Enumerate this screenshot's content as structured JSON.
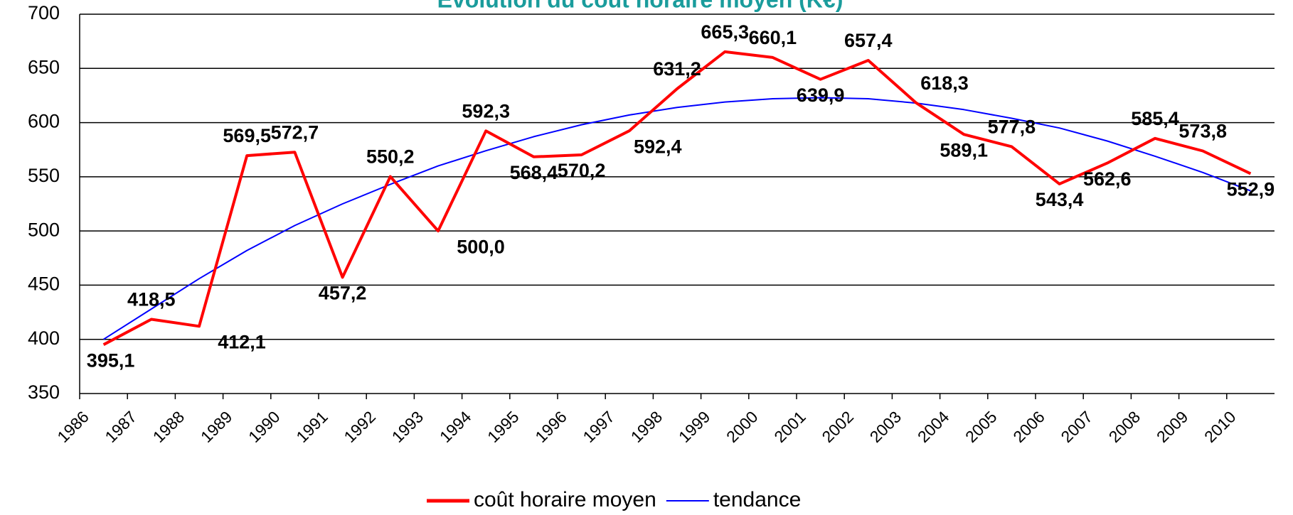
{
  "chart_data": {
    "type": "line",
    "title": "Evolution du coût horaire moyen (K€)",
    "categories": [
      "1986",
      "1987",
      "1988",
      "1989",
      "1990",
      "1991",
      "1992",
      "1993",
      "1994",
      "1995",
      "1996",
      "1997",
      "1998",
      "1999",
      "2000",
      "2001",
      "2002",
      "2003",
      "2004",
      "2005",
      "2006",
      "2007",
      "2008",
      "2009",
      "2010"
    ],
    "series": [
      {
        "name": "coût horaire moyen",
        "color": "#ff0000",
        "values": [
          395.1,
          418.5,
          412.1,
          569.5,
          572.7,
          457.2,
          550.2,
          500.0,
          592.3,
          568.4,
          570.2,
          592.4,
          631.2,
          665.3,
          660.1,
          639.9,
          657.4,
          618.3,
          589.1,
          577.8,
          543.4,
          562.6,
          585.4,
          573.8,
          552.9
        ],
        "value_labels": [
          "395,1",
          "418,5",
          "412,1",
          "569,5",
          "572,7",
          "457,2",
          "550,2",
          "500,0",
          "592,3",
          "568,4",
          "570,2",
          "592,4",
          "631,2",
          "665,3",
          "660,1",
          "639,9",
          "657,4",
          "618,3",
          "589,1",
          "577,8",
          "543,4",
          "562,6",
          "585,4",
          "573,8",
          "552,9"
        ]
      },
      {
        "name": "tendance",
        "color": "#0000ff",
        "values": [
          400,
          428,
          456,
          482,
          505,
          525,
          543,
          560,
          574,
          587,
          598,
          607,
          614,
          619,
          622,
          623,
          622,
          618,
          612,
          604,
          595,
          583,
          569,
          554,
          537
        ]
      }
    ],
    "ylim": [
      350,
      700
    ],
    "yticks": [
      350,
      400,
      450,
      500,
      550,
      600,
      650,
      700
    ],
    "grid": true,
    "legend": "bottom"
  }
}
